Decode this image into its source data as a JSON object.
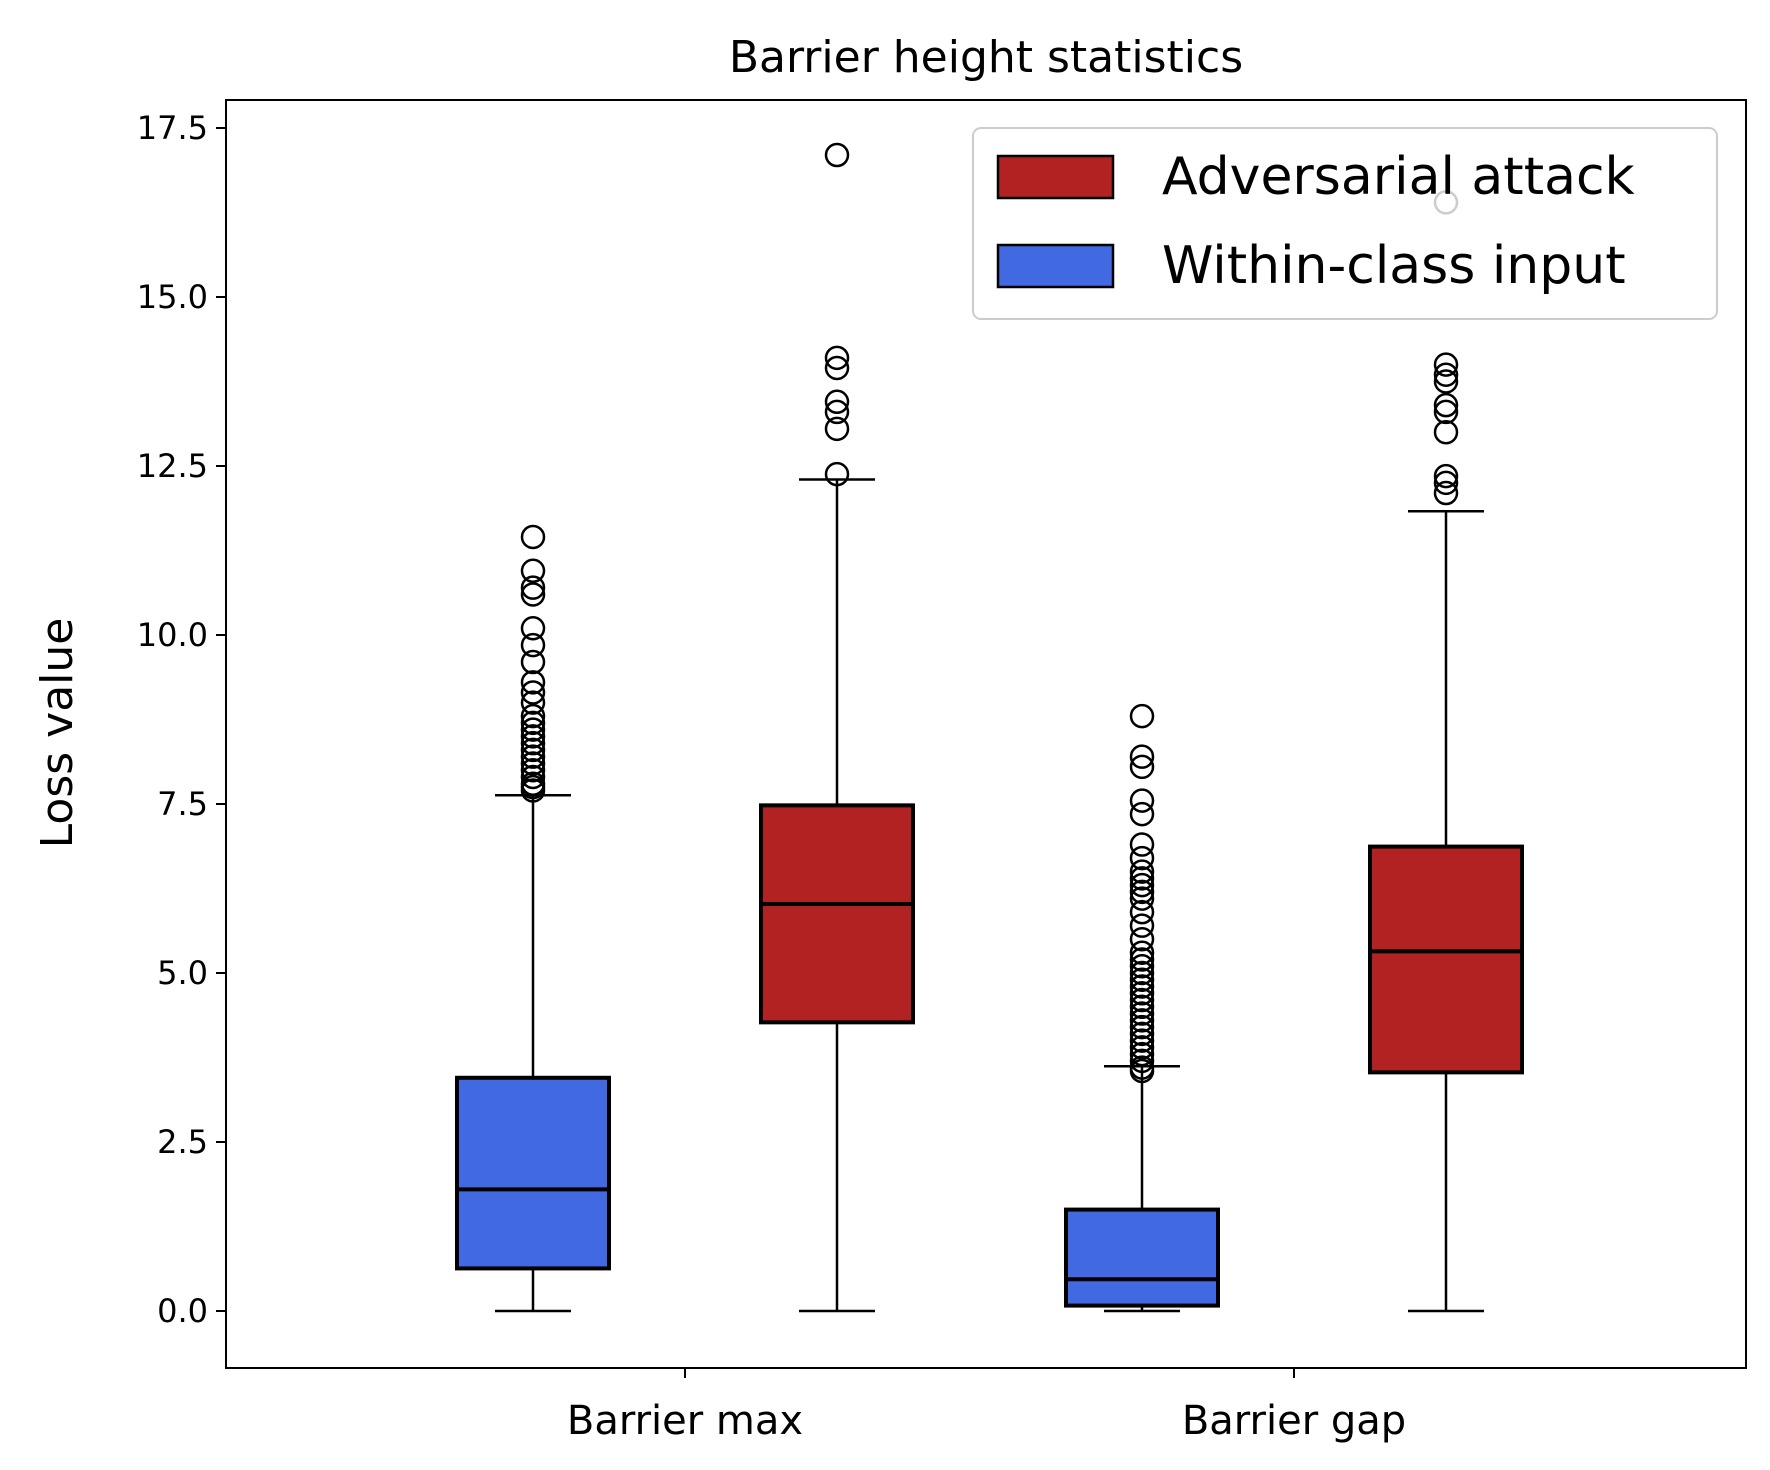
{
  "chart_data": {
    "type": "boxplot",
    "title": "Barrier height statistics",
    "xlabel": "",
    "ylabel": "Loss value",
    "ylim": [
      -0.87,
      17.98
    ],
    "yticks": [
      0.0,
      2.5,
      5.0,
      7.5,
      10.0,
      12.5,
      15.0,
      17.5
    ],
    "ytick_labels": [
      "0.0",
      "2.5",
      "5.0",
      "7.5",
      "10.0",
      "12.5",
      "15.0",
      "17.5"
    ],
    "categories": [
      "Barrier max",
      "Barrier gap"
    ],
    "legend": {
      "position": "top-right",
      "entries": [
        {
          "label": "Adversarial attack",
          "color": "#b22222"
        },
        {
          "label": "Within-class input",
          "color": "#4169e1"
        }
      ]
    },
    "series": [
      {
        "name": "Within-class input",
        "color": "#4169e1",
        "boxes": [
          {
            "category": "Barrier max",
            "whisker_low": 0.0,
            "q1": 0.63,
            "median": 1.8,
            "q3": 3.45,
            "whisker_high": 7.63,
            "outliers": [
              7.7,
              7.75,
              7.8,
              7.9,
              8.0,
              8.1,
              8.2,
              8.3,
              8.4,
              8.5,
              8.6,
              8.7,
              8.8,
              9.0,
              9.15,
              9.3,
              9.6,
              9.85,
              10.1,
              10.6,
              10.7,
              10.95,
              11.45
            ]
          },
          {
            "category": "Barrier gap",
            "whisker_low": 0.0,
            "q1": 0.08,
            "median": 0.47,
            "q3": 1.5,
            "whisker_high": 3.62,
            "outliers": [
              3.55,
              3.6,
              3.7,
              3.8,
              3.9,
              4.0,
              4.1,
              4.2,
              4.3,
              4.4,
              4.5,
              4.6,
              4.7,
              4.8,
              4.9,
              5.0,
              5.1,
              5.2,
              5.3,
              5.5,
              5.7,
              5.9,
              6.1,
              6.2,
              6.3,
              6.4,
              6.5,
              6.7,
              6.9,
              7.35,
              7.55,
              8.05,
              8.2,
              8.8
            ]
          }
        ]
      },
      {
        "name": "Adversarial attack",
        "color": "#b22222",
        "boxes": [
          {
            "category": "Barrier max",
            "whisker_low": 0.0,
            "q1": 4.27,
            "median": 6.02,
            "q3": 7.48,
            "whisker_high": 12.3,
            "outliers": [
              12.38,
              13.05,
              13.3,
              13.45,
              13.95,
              14.1,
              17.1
            ]
          },
          {
            "category": "Barrier gap",
            "whisker_low": 0.0,
            "q1": 3.53,
            "median": 5.32,
            "q3": 6.87,
            "whisker_high": 11.83,
            "outliers": [
              12.1,
              12.25,
              12.35,
              13.0,
              13.3,
              13.4,
              13.75,
              13.85,
              14.0,
              16.4
            ]
          }
        ]
      }
    ]
  }
}
